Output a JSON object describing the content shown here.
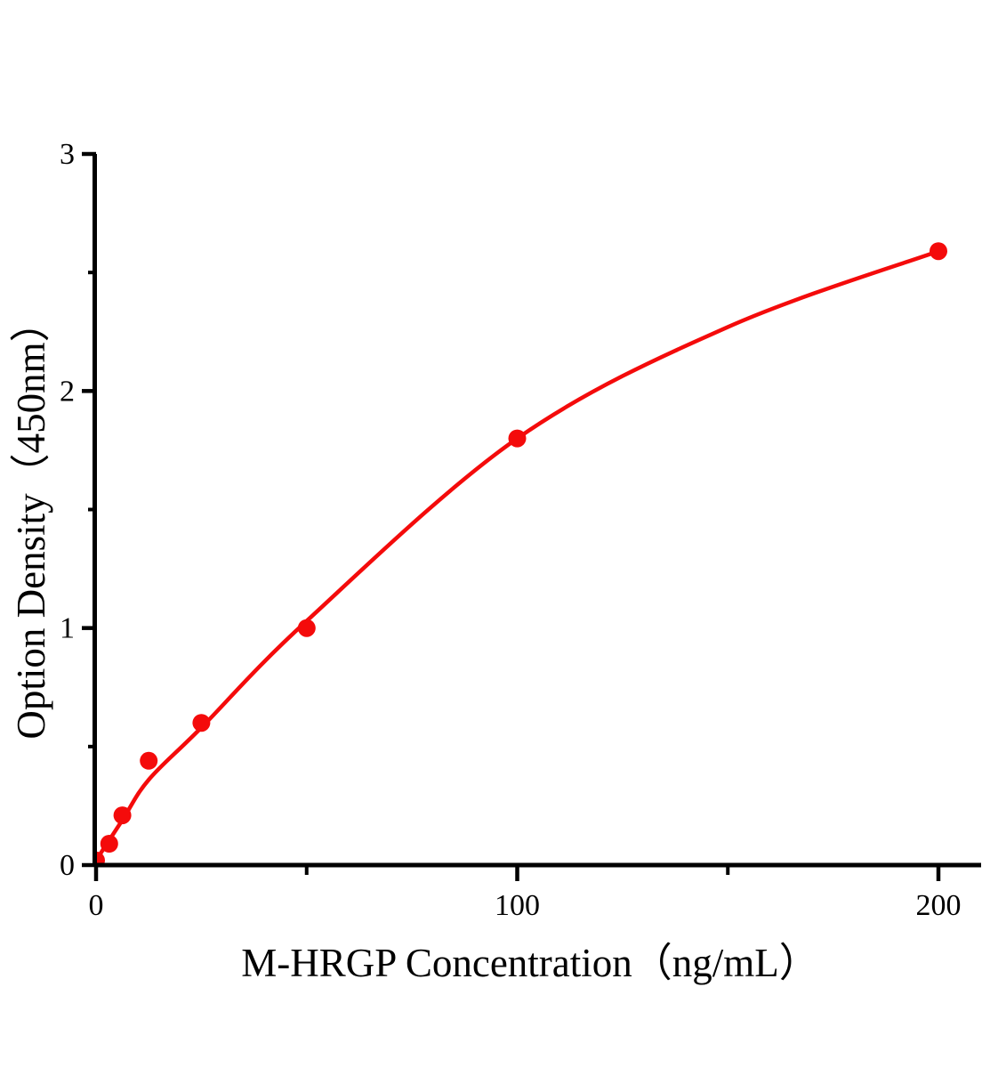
{
  "chart_data": {
    "type": "scatter",
    "title": "",
    "xlabel": "M-HRGP Concentration（ng/mL）",
    "ylabel": "Option Density（450nm）",
    "points": {
      "x": [
        0,
        3.125,
        6.25,
        12.5,
        25,
        50,
        100,
        200
      ],
      "y": [
        0.02,
        0.09,
        0.21,
        0.44,
        0.6,
        1.0,
        1.8,
        2.59
      ]
    },
    "fit_curve": {
      "x": [
        0,
        6.25,
        12.5,
        25,
        50,
        100,
        150,
        200
      ],
      "y": [
        0.02,
        0.19,
        0.36,
        0.58,
        1.03,
        1.8,
        2.27,
        2.59
      ]
    },
    "xlim": [
      0,
      210
    ],
    "ylim": [
      0,
      3
    ],
    "x_major_ticks": [
      0,
      100,
      200
    ],
    "x_minor_ticks": [
      50,
      150
    ],
    "y_major_ticks": [
      0,
      1,
      2,
      3
    ],
    "y_minor_ticks": [
      0.5,
      1.5,
      2.5
    ],
    "grid": false,
    "legend": "none",
    "colors": {
      "marker": "#f40b0b",
      "line": "#f40b0b",
      "axis": "#000000",
      "background": "#ffffff"
    }
  }
}
